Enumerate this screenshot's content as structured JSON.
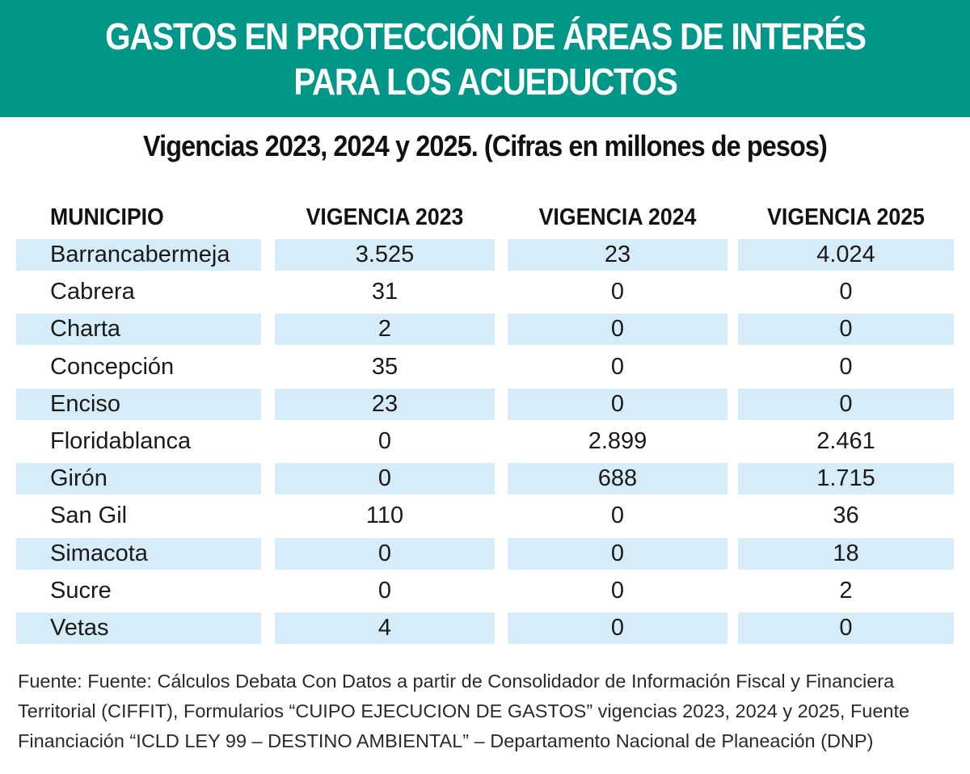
{
  "colors": {
    "accent": "#009688",
    "row_shade": "#d6ecf8"
  },
  "header": {
    "title_line1": "GASTOS EN PROTECCIÓN DE ÁREAS DE INTERÉS",
    "title_line2": "PARA LOS ACUEDUCTOS"
  },
  "subtitle": "Vigencias 2023, 2024 y 2025. (Cifras en millones de pesos)",
  "chart_data": {
    "type": "table",
    "title": "GASTOS EN PROTECCIÓN DE ÁREAS DE INTERÉS PARA LOS ACUEDUCTOS",
    "subtitle": "Vigencias 2023, 2024 y 2025. (Cifras en millones de pesos)",
    "columns": [
      "MUNICIPIO",
      "VIGENCIA 2023",
      "VIGENCIA 2024",
      "VIGENCIA 2025"
    ],
    "rows": [
      [
        "Barrancabermeja",
        "3.525",
        "23",
        "4.024"
      ],
      [
        "Cabrera",
        "31",
        "0",
        "0"
      ],
      [
        "Charta",
        "2",
        "0",
        "0"
      ],
      [
        "Concepción",
        "35",
        "0",
        "0"
      ],
      [
        "Enciso",
        "23",
        "0",
        "0"
      ],
      [
        "Floridablanca",
        "0",
        "2.899",
        "2.461"
      ],
      [
        "Girón",
        "0",
        "688",
        "1.715"
      ],
      [
        "San Gil",
        "110",
        "0",
        "36"
      ],
      [
        "Simacota",
        "0",
        "0",
        "18"
      ],
      [
        "Sucre",
        "0",
        "0",
        "2"
      ],
      [
        "Vetas",
        "4",
        "0",
        "0"
      ]
    ]
  },
  "source": "Fuente: Fuente: Cálculos Debata Con Datos a partir de Consolidador de Información Fiscal y Financiera Territorial (CIFFIT), Formularios “CUIPO EJECUCION DE GASTOS” vigencias 2023, 2024 y 2025, Fuente Financiación “ICLD LEY 99 – DESTINO AMBIENTAL” – Departamento Nacional de Planeación (DNP)"
}
